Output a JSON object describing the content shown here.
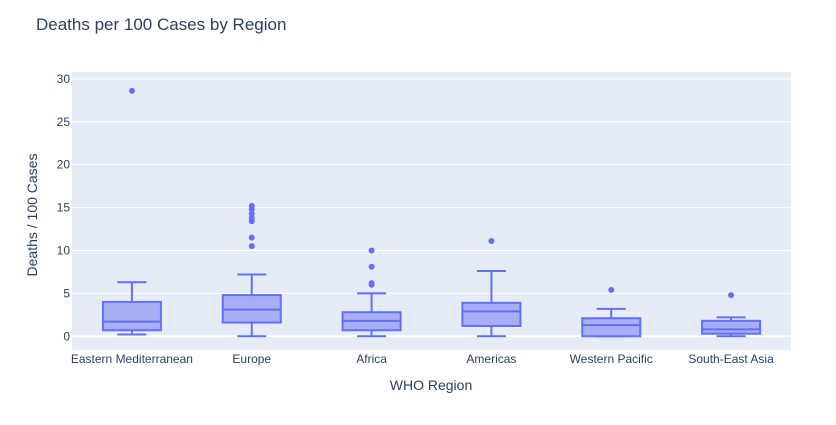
{
  "chart_data": {
    "type": "box",
    "title": "Deaths per 100 Cases by Region",
    "xlabel": "WHO Region",
    "ylabel": "Deaths / 100 Cases",
    "ylim": [
      -1.6,
      30.8
    ],
    "yticks": [
      0,
      5,
      10,
      15,
      20,
      25,
      30
    ],
    "grid": true,
    "legend": "none",
    "colors": {
      "box_line": "#636efa",
      "box_fill": "#a8aef6",
      "plot_bg": "#e5ecf6",
      "grid": "#ffffff",
      "text": "#2a3f5f"
    },
    "categories": [
      "Eastern Mediterranean",
      "Europe",
      "Africa",
      "Americas",
      "Western Pacific",
      "South-East Asia"
    ],
    "boxes": [
      {
        "category": "Eastern Mediterranean",
        "lower_whisker": 0.2,
        "q1": 0.7,
        "median": 1.7,
        "q3": 4.0,
        "upper_whisker": 6.3,
        "outliers": [
          28.6
        ]
      },
      {
        "category": "Europe",
        "lower_whisker": 0.0,
        "q1": 1.6,
        "median": 3.1,
        "q3": 4.8,
        "upper_whisker": 7.2,
        "outliers": [
          10.5,
          11.5,
          13.4,
          13.8,
          14.3,
          14.8,
          15.2
        ]
      },
      {
        "category": "Africa",
        "lower_whisker": 0.0,
        "q1": 0.7,
        "median": 1.8,
        "q3": 2.8,
        "upper_whisker": 5.0,
        "outliers": [
          6.0,
          6.2,
          8.1,
          10.0
        ]
      },
      {
        "category": "Americas",
        "lower_whisker": 0.0,
        "q1": 1.2,
        "median": 2.9,
        "q3": 3.9,
        "upper_whisker": 7.6,
        "outliers": [
          11.1
        ]
      },
      {
        "category": "Western Pacific",
        "lower_whisker": 0.0,
        "q1": 0.0,
        "median": 1.3,
        "q3": 2.1,
        "upper_whisker": 3.2,
        "outliers": [
          5.4
        ]
      },
      {
        "category": "South-East Asia",
        "lower_whisker": 0.0,
        "q1": 0.3,
        "median": 0.8,
        "q3": 1.8,
        "upper_whisker": 2.2,
        "outliers": [
          4.8
        ]
      }
    ]
  }
}
